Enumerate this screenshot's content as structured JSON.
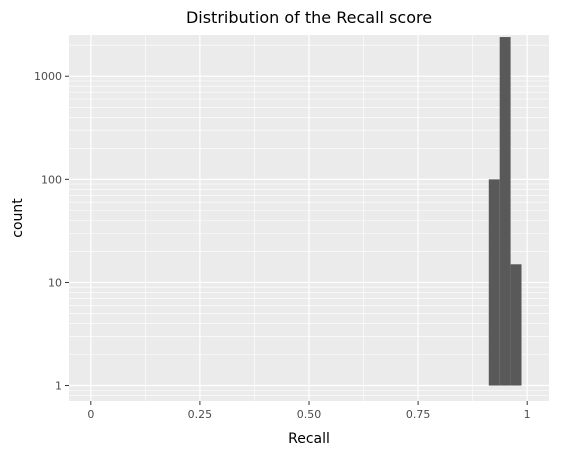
{
  "chart_data": {
    "type": "bar",
    "subtype": "histogram",
    "title": "Distribution of the Recall score",
    "xlabel": "Recall",
    "ylabel": "count",
    "xlim": [
      -0.05,
      1.05
    ],
    "ylim_log10": [
      -0.15,
      3.4
    ],
    "y_scale": "log10",
    "grid": true,
    "legend": "none",
    "x_ticks": [
      {
        "value": 0,
        "label": "0"
      },
      {
        "value": 0.25,
        "label": "0.25"
      },
      {
        "value": 0.5,
        "label": "0.50"
      },
      {
        "value": 0.75,
        "label": "0.75"
      },
      {
        "value": 1,
        "label": "1"
      }
    ],
    "y_ticks": [
      {
        "value": 1,
        "label": "1"
      },
      {
        "value": 10,
        "label": "10"
      },
      {
        "value": 100,
        "label": "100"
      },
      {
        "value": 1000,
        "label": "1000"
      }
    ],
    "bins": [
      {
        "x0": 0.912,
        "x1": 0.937,
        "count": 100
      },
      {
        "x0": 0.937,
        "x1": 0.962,
        "count": 2400
      },
      {
        "x0": 0.962,
        "x1": 0.987,
        "count": 15
      }
    ],
    "colors": {
      "panel": "#ebebeb",
      "grid": "#ffffff",
      "bar": "#595959",
      "tick": "#333333"
    }
  }
}
